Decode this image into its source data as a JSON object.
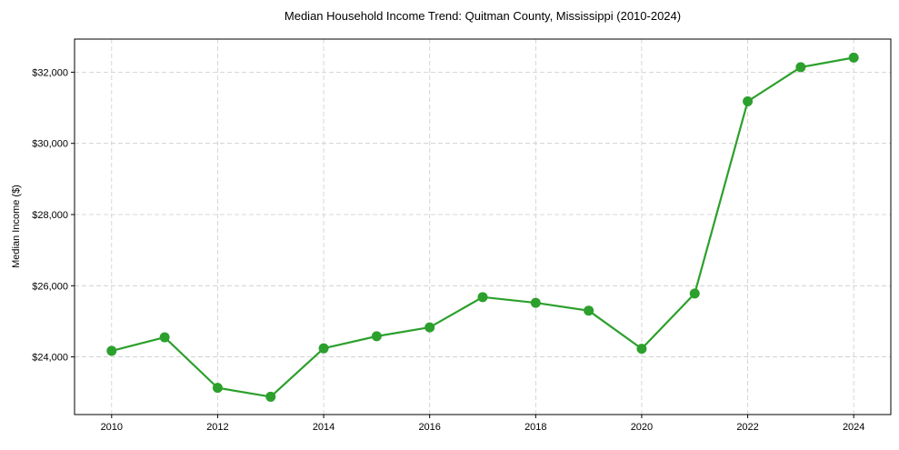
{
  "chart_data": {
    "type": "line",
    "title": "Median Household Income Trend: Quitman County, Mississippi (2010-2024)",
    "xlabel": "",
    "ylabel": "Median Income ($)",
    "x": [
      2010,
      2011,
      2012,
      2013,
      2014,
      2015,
      2016,
      2017,
      2018,
      2019,
      2020,
      2021,
      2022,
      2023,
      2024
    ],
    "series": [
      {
        "name": "Median Household Income",
        "values": [
          24170,
          24550,
          23130,
          22880,
          24240,
          24580,
          24830,
          25680,
          25520,
          25300,
          24230,
          25780,
          31180,
          32140,
          32410
        ],
        "color": "#2ca02c"
      }
    ],
    "xlim": [
      2009.3,
      2024.7
    ],
    "ylim": [
      22380,
      32930
    ],
    "xticks": [
      2010,
      2012,
      2014,
      2016,
      2018,
      2020,
      2022,
      2024
    ],
    "xtick_labels": [
      "2010",
      "2012",
      "2014",
      "2016",
      "2018",
      "2020",
      "2022",
      "2024"
    ],
    "yticks": [
      24000,
      26000,
      28000,
      30000,
      32000
    ],
    "ytick_labels": [
      "$24,000",
      "$26,000",
      "$28,000",
      "$30,000",
      "$32,000"
    ],
    "grid": true,
    "legend": "none"
  }
}
